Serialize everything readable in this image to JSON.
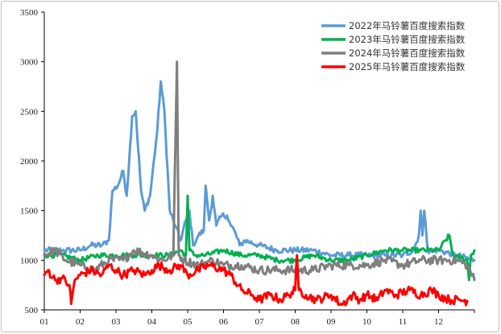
{
  "chart_data": {
    "type": "line",
    "title": "",
    "xlabel": "",
    "ylabel": "",
    "ylim": [
      500,
      3500
    ],
    "yticks": [
      500,
      1000,
      1500,
      2000,
      2500,
      3000,
      3500
    ],
    "xlim": [
      1,
      13
    ],
    "xticks": [
      "01",
      "02",
      "03",
      "04",
      "05",
      "06",
      "07",
      "08",
      "09",
      "10",
      "11",
      "12"
    ],
    "legend_position": "top-right",
    "series": [
      {
        "name": "2022年马铃薯百度搜索指数",
        "color": "#5b9bd5",
        "noise": 30,
        "points": [
          [
            1.0,
            1100
          ],
          [
            1.5,
            1100
          ],
          [
            2.0,
            1100
          ],
          [
            2.3,
            1150
          ],
          [
            2.6,
            1150
          ],
          [
            2.8,
            1200
          ],
          [
            2.9,
            1700
          ],
          [
            3.05,
            1750
          ],
          [
            3.2,
            1900
          ],
          [
            3.3,
            1650
          ],
          [
            3.45,
            2450
          ],
          [
            3.55,
            2500
          ],
          [
            3.7,
            1700
          ],
          [
            3.8,
            1500
          ],
          [
            3.95,
            1650
          ],
          [
            4.15,
            2300
          ],
          [
            4.25,
            2800
          ],
          [
            4.35,
            2500
          ],
          [
            4.5,
            1500
          ],
          [
            4.65,
            1350
          ],
          [
            4.8,
            1200
          ],
          [
            4.95,
            1400
          ],
          [
            5.05,
            1500
          ],
          [
            5.15,
            1150
          ],
          [
            5.3,
            1250
          ],
          [
            5.45,
            1300
          ],
          [
            5.5,
            1750
          ],
          [
            5.6,
            1400
          ],
          [
            5.7,
            1650
          ],
          [
            5.8,
            1350
          ],
          [
            5.95,
            1450
          ],
          [
            6.1,
            1450
          ],
          [
            6.2,
            1350
          ],
          [
            6.3,
            1300
          ],
          [
            6.45,
            1150
          ],
          [
            6.6,
            1200
          ],
          [
            7.0,
            1150
          ],
          [
            7.5,
            1100
          ],
          [
            8.0,
            1100
          ],
          [
            8.5,
            1100
          ],
          [
            9.0,
            1050
          ],
          [
            9.5,
            1050
          ],
          [
            10.0,
            1050
          ],
          [
            10.5,
            1050
          ],
          [
            11.0,
            1050
          ],
          [
            11.3,
            1100
          ],
          [
            11.45,
            1250
          ],
          [
            11.5,
            1500
          ],
          [
            11.55,
            1250
          ],
          [
            11.6,
            1500
          ],
          [
            11.7,
            1100
          ],
          [
            12.0,
            1100
          ],
          [
            12.5,
            1050
          ],
          [
            13.0,
            1000
          ]
        ]
      },
      {
        "name": "2023年马铃薯百度搜索指数",
        "color": "#00b050",
        "noise": 25,
        "points": [
          [
            1.0,
            1050
          ],
          [
            1.5,
            1050
          ],
          [
            2.0,
            1000
          ],
          [
            2.5,
            1050
          ],
          [
            3.0,
            1050
          ],
          [
            3.5,
            1050
          ],
          [
            4.0,
            1050
          ],
          [
            4.5,
            1050
          ],
          [
            4.8,
            1100
          ],
          [
            4.95,
            1050
          ],
          [
            5.0,
            1650
          ],
          [
            5.05,
            1100
          ],
          [
            5.2,
            1050
          ],
          [
            5.5,
            1050
          ],
          [
            6.0,
            1100
          ],
          [
            6.5,
            1050
          ],
          [
            7.0,
            1050
          ],
          [
            7.5,
            1000
          ],
          [
            8.0,
            1000
          ],
          [
            8.5,
            1050
          ],
          [
            9.0,
            1000
          ],
          [
            9.5,
            1000
          ],
          [
            10.0,
            1050
          ],
          [
            10.5,
            1100
          ],
          [
            11.0,
            1100
          ],
          [
            11.5,
            1100
          ],
          [
            12.0,
            1100
          ],
          [
            12.3,
            1250
          ],
          [
            12.4,
            1050
          ],
          [
            12.8,
            1000
          ],
          [
            12.85,
            800
          ],
          [
            12.9,
            1050
          ],
          [
            13.0,
            1100
          ]
        ]
      },
      {
        "name": "2024年马铃薯百度搜索指数",
        "color": "#7f7f7f",
        "noise": 45,
        "points": [
          [
            1.0,
            1050
          ],
          [
            1.3,
            1100
          ],
          [
            1.6,
            1000
          ],
          [
            2.0,
            950
          ],
          [
            2.4,
            900
          ],
          [
            2.8,
            1000
          ],
          [
            3.2,
            1000
          ],
          [
            3.5,
            1100
          ],
          [
            4.0,
            1050
          ],
          [
            4.3,
            1000
          ],
          [
            4.6,
            1050
          ],
          [
            4.7,
            3000
          ],
          [
            4.75,
            1050
          ],
          [
            4.9,
            1000
          ],
          [
            5.3,
            950
          ],
          [
            5.7,
            1000
          ],
          [
            6.0,
            950
          ],
          [
            6.5,
            950
          ],
          [
            7.0,
            900
          ],
          [
            7.5,
            900
          ],
          [
            8.0,
            900
          ],
          [
            8.5,
            900
          ],
          [
            9.0,
            950
          ],
          [
            9.5,
            950
          ],
          [
            10.0,
            950
          ],
          [
            10.5,
            1000
          ],
          [
            11.0,
            950
          ],
          [
            11.5,
            1000
          ],
          [
            12.0,
            1000
          ],
          [
            12.5,
            1000
          ],
          [
            12.8,
            950
          ],
          [
            13.0,
            800
          ]
        ]
      },
      {
        "name": "2025年马铃薯百度搜索指数",
        "color": "#ff0000",
        "noise": 45,
        "points": [
          [
            1.0,
            850
          ],
          [
            1.1,
            900
          ],
          [
            1.3,
            800
          ],
          [
            1.5,
            820
          ],
          [
            1.7,
            750
          ],
          [
            1.75,
            560
          ],
          [
            1.85,
            800
          ],
          [
            2.0,
            850
          ],
          [
            2.3,
            900
          ],
          [
            2.6,
            850
          ],
          [
            2.8,
            950
          ],
          [
            3.0,
            900
          ],
          [
            3.2,
            850
          ],
          [
            3.5,
            900
          ],
          [
            3.8,
            850
          ],
          [
            4.0,
            900
          ],
          [
            4.2,
            950
          ],
          [
            4.5,
            900
          ],
          [
            4.8,
            950
          ],
          [
            5.0,
            850
          ],
          [
            5.3,
            900
          ],
          [
            5.6,
            950
          ],
          [
            6.0,
            900
          ],
          [
            6.2,
            850
          ],
          [
            6.5,
            700
          ],
          [
            6.8,
            650
          ],
          [
            7.0,
            600
          ],
          [
            7.3,
            650
          ],
          [
            7.6,
            600
          ],
          [
            7.8,
            650
          ],
          [
            8.0,
            700
          ],
          [
            8.05,
            1050
          ],
          [
            8.1,
            700
          ],
          [
            8.3,
            650
          ],
          [
            8.6,
            600
          ],
          [
            9.0,
            650
          ],
          [
            9.3,
            550
          ],
          [
            9.6,
            650
          ],
          [
            9.8,
            600
          ],
          [
            10.0,
            650
          ],
          [
            10.3,
            600
          ],
          [
            10.5,
            700
          ],
          [
            10.8,
            650
          ],
          [
            11.2,
            700
          ],
          [
            11.5,
            650
          ],
          [
            11.8,
            700
          ],
          [
            12.0,
            650
          ],
          [
            12.3,
            600
          ],
          [
            12.6,
            600
          ],
          [
            12.8,
            590
          ]
        ]
      }
    ]
  }
}
